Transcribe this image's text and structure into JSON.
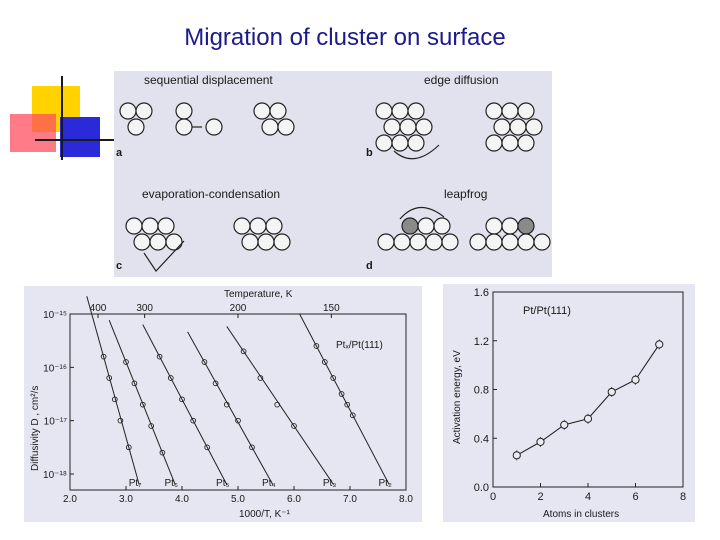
{
  "slide": {
    "title": "Migration of cluster on surface"
  },
  "mechanisms": {
    "a": {
      "label": "sequential displacement",
      "letter": "a"
    },
    "b": {
      "label": "edge diffusion",
      "letter": "b"
    },
    "c": {
      "label": "evaporation-condensation",
      "letter": "c"
    },
    "d": {
      "label": "leapfrog",
      "letter": "d"
    }
  },
  "chart_data": [
    {
      "type": "scatter",
      "title": "Temperature, K",
      "xlabel": "1000/T, K⁻¹",
      "ylabel": "Diffusivity D , cm²/s",
      "annotation": "Ptₓ/Pt(111)",
      "xlim": [
        2.0,
        8.0
      ],
      "ylim_log10": [
        -18.3,
        -15
      ],
      "x_ticks": [
        "2.0",
        "3.0",
        "4.0",
        "5.0",
        "6.0",
        "7.0",
        "8.0"
      ],
      "y_ticks": [
        "10⁻¹⁵",
        "10⁻¹⁶",
        "10⁻¹⁷",
        "10⁻¹⁸"
      ],
      "top_ticks": [
        "400",
        "300",
        "200",
        "150"
      ],
      "top_tick_values_K": [
        400,
        300,
        200,
        150
      ],
      "series": [
        {
          "name": "Pt₇",
          "x": [
            2.6,
            2.7,
            2.8,
            2.9,
            3.05
          ],
          "log10_y": [
            -15.8,
            -16.2,
            -16.6,
            -17.0,
            -17.5
          ]
        },
        {
          "name": "Pt₆",
          "x": [
            3.0,
            3.15,
            3.3,
            3.45,
            3.65
          ],
          "log10_y": [
            -15.9,
            -16.3,
            -16.7,
            -17.1,
            -17.6
          ]
        },
        {
          "name": "Pt₅",
          "x": [
            3.6,
            3.8,
            4.0,
            4.2,
            4.45
          ],
          "log10_y": [
            -15.8,
            -16.2,
            -16.6,
            -17.0,
            -17.5
          ]
        },
        {
          "name": "Pt₄",
          "x": [
            4.4,
            4.6,
            4.8,
            5.0,
            5.25
          ],
          "log10_y": [
            -15.9,
            -16.3,
            -16.7,
            -17.0,
            -17.5
          ]
        },
        {
          "name": "Pt₃",
          "x": [
            5.1,
            5.4,
            5.7,
            6.0
          ],
          "log10_y": [
            -15.7,
            -16.2,
            -16.7,
            -17.1
          ]
        },
        {
          "name": "Pt₂",
          "x": [
            6.4,
            6.55,
            6.7,
            6.85,
            6.95,
            7.05
          ],
          "log10_y": [
            -15.6,
            -15.9,
            -16.2,
            -16.5,
            -16.7,
            -16.9
          ]
        }
      ]
    },
    {
      "type": "line",
      "title": "Pt/Pt(111)",
      "xlabel": "Atoms in clusters",
      "ylabel": "Activation energy, eV",
      "xlim": [
        0,
        8
      ],
      "ylim": [
        0,
        1.6
      ],
      "x_ticks": [
        "0",
        "2",
        "4",
        "6",
        "8"
      ],
      "y_ticks": [
        "0.0",
        "0.4",
        "0.8",
        "1.2",
        "1.6"
      ],
      "x": [
        1,
        2,
        3,
        4,
        5,
        6,
        7
      ],
      "y": [
        0.26,
        0.37,
        0.51,
        0.56,
        0.78,
        0.88,
        1.17
      ]
    }
  ]
}
